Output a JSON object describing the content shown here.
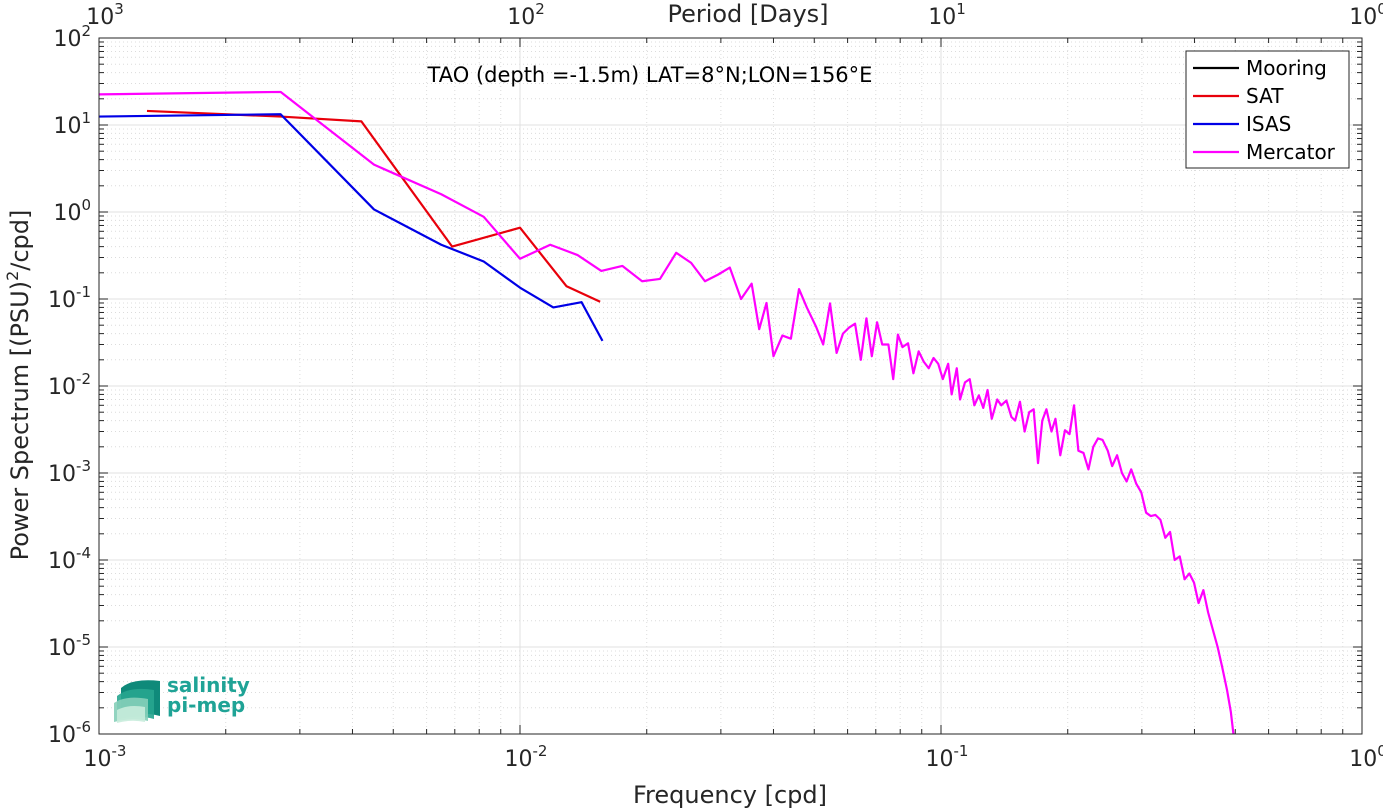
{
  "chart_data": {
    "type": "line",
    "annotation": "TAO (depth =-1.5m) LAT=8°N;LON=156°E",
    "xlabel": "Frequency [cpd]",
    "ylabel_pre": "Power Spectrum [(PSU)",
    "ylabel_sup": "2",
    "ylabel_post": "/cpd]",
    "top_xlabel": "Period [Days]",
    "x_scale": "log",
    "y_scale": "log",
    "xlim": [
      0.001,
      1
    ],
    "ylim": [
      1e-06,
      100
    ],
    "grid": true,
    "legend_placement": "top-right",
    "x_ticks": [
      {
        "value": 0.001,
        "base": "10",
        "exp": "-3"
      },
      {
        "value": 0.01,
        "base": "10",
        "exp": "-2"
      },
      {
        "value": 0.1,
        "base": "10",
        "exp": "-1"
      },
      {
        "value": 1,
        "base": "10",
        "exp": "0"
      }
    ],
    "y_ticks": [
      {
        "value": 1e-06,
        "base": "10",
        "exp": "-6"
      },
      {
        "value": 1e-05,
        "base": "10",
        "exp": "-5"
      },
      {
        "value": 0.0001,
        "base": "10",
        "exp": "-4"
      },
      {
        "value": 0.001,
        "base": "10",
        "exp": "-3"
      },
      {
        "value": 0.01,
        "base": "10",
        "exp": "-2"
      },
      {
        "value": 0.1,
        "base": "10",
        "exp": "-1"
      },
      {
        "value": 1,
        "base": "10",
        "exp": "0"
      },
      {
        "value": 10,
        "base": "10",
        "exp": "1"
      },
      {
        "value": 100,
        "base": "10",
        "exp": "2"
      }
    ],
    "top_ticks": [
      {
        "value": 0.001,
        "base": "10",
        "exp": "3"
      },
      {
        "value": 0.01,
        "base": "10",
        "exp": "2"
      },
      {
        "value": 0.1,
        "base": "10",
        "exp": "1"
      },
      {
        "value": 1,
        "base": "10",
        "exp": "0"
      }
    ],
    "series": [
      {
        "name": "Mooring",
        "color": "#000000",
        "points": []
      },
      {
        "name": "SAT",
        "color": "#e8000b",
        "points": [
          [
            0.0013,
            14.5
          ],
          [
            0.0027,
            12.5
          ],
          [
            0.0042,
            11.0
          ],
          [
            0.0069,
            0.4
          ],
          [
            0.01,
            0.66
          ],
          [
            0.0129,
            0.14
          ],
          [
            0.0155,
            0.093
          ]
        ]
      },
      {
        "name": "ISAS",
        "color": "#0000e6",
        "points": [
          [
            0.001,
            12.5
          ],
          [
            0.0027,
            13.3
          ],
          [
            0.0045,
            1.07
          ],
          [
            0.0065,
            0.42
          ],
          [
            0.0082,
            0.27
          ],
          [
            0.01,
            0.135
          ],
          [
            0.012,
            0.08
          ],
          [
            0.014,
            0.092
          ],
          [
            0.0157,
            0.033
          ]
        ]
      },
      {
        "name": "Mercator",
        "color": "#ff00ff",
        "points": [
          [
            0.001,
            22.5
          ],
          [
            0.0027,
            24.0
          ],
          [
            0.0045,
            3.5
          ],
          [
            0.0065,
            1.6
          ],
          [
            0.0082,
            0.88
          ],
          [
            0.01,
            0.29
          ],
          [
            0.0118,
            0.42
          ],
          [
            0.0137,
            0.32
          ],
          [
            0.0156,
            0.21
          ],
          [
            0.0175,
            0.24
          ],
          [
            0.0195,
            0.16
          ],
          [
            0.0215,
            0.17
          ],
          [
            0.0235,
            0.34
          ],
          [
            0.0255,
            0.26
          ],
          [
            0.0275,
            0.16
          ],
          [
            0.0295,
            0.19
          ],
          [
            0.0315,
            0.23
          ],
          [
            0.0335,
            0.1
          ],
          [
            0.0355,
            0.15
          ],
          [
            0.037,
            0.045
          ],
          [
            0.0385,
            0.09
          ],
          [
            0.04,
            0.022
          ],
          [
            0.042,
            0.038
          ],
          [
            0.044,
            0.035
          ],
          [
            0.046,
            0.13
          ],
          [
            0.048,
            0.08
          ],
          [
            0.0505,
            0.048
          ],
          [
            0.0525,
            0.03
          ],
          [
            0.0545,
            0.089
          ],
          [
            0.0565,
            0.024
          ],
          [
            0.0585,
            0.04
          ],
          [
            0.0605,
            0.047
          ],
          [
            0.0625,
            0.052
          ],
          [
            0.0645,
            0.02
          ],
          [
            0.0665,
            0.06
          ],
          [
            0.0685,
            0.022
          ],
          [
            0.0705,
            0.054
          ],
          [
            0.0725,
            0.03
          ],
          [
            0.075,
            0.03
          ],
          [
            0.077,
            0.012
          ],
          [
            0.079,
            0.039
          ],
          [
            0.081,
            0.028
          ],
          [
            0.0835,
            0.031
          ],
          [
            0.086,
            0.014
          ],
          [
            0.0885,
            0.025
          ],
          [
            0.091,
            0.019
          ],
          [
            0.0935,
            0.016
          ],
          [
            0.096,
            0.021
          ],
          [
            0.0985,
            0.018
          ],
          [
            0.101,
            0.012
          ],
          [
            0.104,
            0.018
          ],
          [
            0.106,
            0.008
          ],
          [
            0.109,
            0.016
          ],
          [
            0.111,
            0.007
          ],
          [
            0.114,
            0.011
          ],
          [
            0.117,
            0.012
          ],
          [
            0.12,
            0.006
          ],
          [
            0.123,
            0.0078
          ],
          [
            0.126,
            0.0056
          ],
          [
            0.129,
            0.009
          ],
          [
            0.132,
            0.0042
          ],
          [
            0.136,
            0.007
          ],
          [
            0.139,
            0.006
          ],
          [
            0.143,
            0.0068
          ],
          [
            0.147,
            0.0044
          ],
          [
            0.15,
            0.004
          ],
          [
            0.154,
            0.0066
          ],
          [
            0.158,
            0.003
          ],
          [
            0.162,
            0.005
          ],
          [
            0.166,
            0.0054
          ],
          [
            0.17,
            0.0013
          ],
          [
            0.174,
            0.004
          ],
          [
            0.178,
            0.0054
          ],
          [
            0.183,
            0.003
          ],
          [
            0.187,
            0.0042
          ],
          [
            0.192,
            0.0016
          ],
          [
            0.197,
            0.0031
          ],
          [
            0.202,
            0.0028
          ],
          [
            0.207,
            0.006
          ],
          [
            0.212,
            0.0018
          ],
          [
            0.218,
            0.0017
          ],
          [
            0.224,
            0.0011
          ],
          [
            0.23,
            0.002
          ],
          [
            0.236,
            0.0025
          ],
          [
            0.242,
            0.0024
          ],
          [
            0.249,
            0.0018
          ],
          [
            0.255,
            0.0012
          ],
          [
            0.262,
            0.0016
          ],
          [
            0.269,
            0.001
          ],
          [
            0.276,
            0.0008
          ],
          [
            0.283,
            0.0011
          ],
          [
            0.291,
            0.00075
          ],
          [
            0.299,
            0.0006
          ],
          [
            0.307,
            0.00035
          ],
          [
            0.315,
            0.00032
          ],
          [
            0.323,
            0.00033
          ],
          [
            0.332,
            0.00029
          ],
          [
            0.341,
            0.00018
          ],
          [
            0.35,
            0.00021
          ],
          [
            0.359,
            0.0001
          ],
          [
            0.369,
            0.00011
          ],
          [
            0.379,
            6e-05
          ],
          [
            0.389,
            7e-05
          ],
          [
            0.399,
            5.5e-05
          ],
          [
            0.409,
            3.2e-05
          ],
          [
            0.42,
            4.5e-05
          ],
          [
            0.431,
            2.5e-05
          ],
          [
            0.442,
            1.6e-05
          ],
          [
            0.454,
            1e-05
          ],
          [
            0.465,
            6e-06
          ],
          [
            0.478,
            3.2e-06
          ],
          [
            0.488,
            1.8e-06
          ],
          [
            0.495,
            1e-06
          ]
        ]
      }
    ]
  },
  "logo": {
    "line1": "salinity",
    "line2": "pi-mep"
  }
}
